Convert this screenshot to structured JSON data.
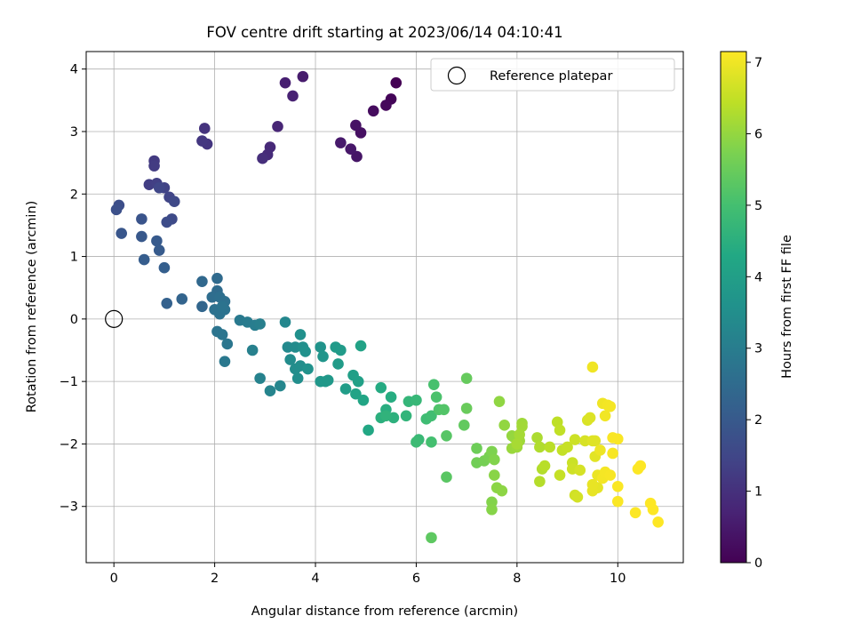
{
  "chart_data": {
    "type": "scatter",
    "title": "FOV centre drift starting at 2023/06/14 04:10:41",
    "xlabel": "Angular distance from reference (arcmin)",
    "ylabel": "Rotation from reference (arcmin)",
    "xlim": [
      -0.55,
      11.3
    ],
    "ylim": [
      -3.9,
      4.28
    ],
    "xticks": [
      0,
      2,
      4,
      6,
      8,
      10
    ],
    "yticks": [
      -3,
      -2,
      -1,
      0,
      1,
      2,
      3,
      4
    ],
    "grid": true,
    "legend": {
      "position": "upper-right",
      "entries": [
        "Reference platepar"
      ]
    },
    "reference_point": {
      "x": 0,
      "y": 0
    },
    "colorbar": {
      "label": "Hours from first FF file",
      "colormap": "viridis",
      "range": [
        0,
        7.15
      ],
      "ticks": [
        0,
        1,
        2,
        3,
        4,
        5,
        6,
        7
      ]
    },
    "points": [
      [
        5.6,
        3.78,
        0.0
      ],
      [
        5.5,
        3.52,
        0.08
      ],
      [
        5.4,
        3.42,
        0.15
      ],
      [
        5.15,
        3.33,
        0.22
      ],
      [
        4.9,
        2.98,
        0.3
      ],
      [
        4.8,
        3.1,
        0.35
      ],
      [
        4.82,
        2.6,
        0.4
      ],
      [
        4.7,
        2.72,
        0.45
      ],
      [
        4.5,
        2.82,
        0.5
      ],
      [
        3.75,
        3.88,
        0.55
      ],
      [
        3.4,
        3.78,
        0.62
      ],
      [
        3.55,
        3.57,
        0.68
      ],
      [
        3.25,
        3.08,
        0.75
      ],
      [
        3.1,
        2.75,
        0.82
      ],
      [
        3.05,
        2.63,
        0.88
      ],
      [
        2.95,
        2.57,
        0.95
      ],
      [
        1.8,
        3.05,
        1.05
      ],
      [
        1.85,
        2.8,
        1.1
      ],
      [
        1.75,
        2.85,
        1.15
      ],
      [
        0.8,
        2.53,
        1.2
      ],
      [
        0.8,
        2.45,
        1.25
      ],
      [
        0.7,
        2.15,
        1.3
      ],
      [
        0.85,
        2.17,
        1.35
      ],
      [
        1.0,
        2.1,
        1.4
      ],
      [
        1.1,
        1.95,
        1.45
      ],
      [
        0.9,
        2.1,
        1.5
      ],
      [
        1.2,
        1.88,
        1.55
      ],
      [
        1.15,
        1.6,
        1.6
      ],
      [
        1.05,
        1.55,
        1.65
      ],
      [
        0.1,
        1.82,
        1.7
      ],
      [
        0.05,
        1.75,
        1.75
      ],
      [
        0.55,
        1.6,
        1.85
      ],
      [
        0.15,
        1.37,
        1.9
      ],
      [
        0.55,
        1.32,
        1.95
      ],
      [
        0.85,
        1.25,
        2.0
      ],
      [
        0.9,
        1.1,
        2.05
      ],
      [
        0.6,
        0.95,
        2.1
      ],
      [
        1.0,
        0.82,
        2.15
      ],
      [
        1.05,
        0.25,
        2.2
      ],
      [
        1.35,
        0.32,
        2.3
      ],
      [
        1.75,
        0.2,
        2.35
      ],
      [
        1.75,
        0.6,
        2.4
      ],
      [
        2.05,
        0.65,
        2.45
      ],
      [
        2.05,
        0.45,
        2.5
      ],
      [
        1.95,
        0.35,
        2.55
      ],
      [
        2.1,
        0.35,
        2.6
      ],
      [
        2.2,
        0.28,
        2.62
      ],
      [
        2.0,
        0.15,
        2.65
      ],
      [
        2.2,
        0.15,
        2.68
      ],
      [
        2.1,
        0.08,
        2.7
      ],
      [
        2.15,
        0.2,
        2.72
      ],
      [
        2.05,
        -0.2,
        2.75
      ],
      [
        2.15,
        -0.25,
        2.78
      ],
      [
        2.25,
        -0.4,
        2.8
      ],
      [
        2.2,
        -0.68,
        2.85
      ],
      [
        2.5,
        -0.02,
        2.9
      ],
      [
        2.65,
        -0.05,
        2.95
      ],
      [
        2.8,
        -0.1,
        3.0
      ],
      [
        2.9,
        -0.08,
        3.05
      ],
      [
        2.75,
        -0.5,
        3.1
      ],
      [
        2.9,
        -0.95,
        3.15
      ],
      [
        3.1,
        -1.15,
        3.2
      ],
      [
        3.3,
        -1.07,
        3.25
      ],
      [
        3.4,
        -0.05,
        3.3
      ],
      [
        3.45,
        -0.45,
        3.35
      ],
      [
        3.6,
        -0.45,
        3.4
      ],
      [
        3.5,
        -0.65,
        3.42
      ],
      [
        3.6,
        -0.8,
        3.45
      ],
      [
        3.7,
        -0.75,
        3.48
      ],
      [
        3.65,
        -0.95,
        3.5
      ],
      [
        3.75,
        -0.45,
        3.52
      ],
      [
        3.7,
        -0.25,
        3.55
      ],
      [
        3.8,
        -0.52,
        3.58
      ],
      [
        3.85,
        -0.8,
        3.6
      ],
      [
        4.1,
        -0.45,
        3.65
      ],
      [
        4.15,
        -0.6,
        3.7
      ],
      [
        4.1,
        -1.0,
        3.75
      ],
      [
        4.2,
        -1.0,
        3.78
      ],
      [
        4.25,
        -0.98,
        3.8
      ],
      [
        4.4,
        -0.45,
        3.85
      ],
      [
        4.5,
        -0.5,
        3.88
      ],
      [
        4.45,
        -0.72,
        3.9
      ],
      [
        4.6,
        -1.12,
        3.95
      ],
      [
        4.75,
        -0.9,
        4.0
      ],
      [
        4.85,
        -1.0,
        4.05
      ],
      [
        4.9,
        -0.43,
        4.1
      ],
      [
        4.8,
        -1.2,
        4.15
      ],
      [
        4.95,
        -1.3,
        4.2
      ],
      [
        5.05,
        -1.78,
        4.25
      ],
      [
        5.3,
        -1.1,
        4.35
      ],
      [
        5.5,
        -1.25,
        4.4
      ],
      [
        5.4,
        -1.45,
        4.45
      ],
      [
        5.3,
        -1.58,
        4.5
      ],
      [
        5.55,
        -1.58,
        4.55
      ],
      [
        5.4,
        -1.55,
        4.6
      ],
      [
        5.8,
        -1.55,
        4.65
      ],
      [
        5.85,
        -1.32,
        4.7
      ],
      [
        6.0,
        -1.3,
        4.75
      ],
      [
        6.05,
        -1.93,
        4.8
      ],
      [
        6.0,
        -1.97,
        4.85
      ],
      [
        6.2,
        -1.6,
        4.9
      ],
      [
        6.3,
        -1.55,
        4.95
      ],
      [
        6.3,
        -1.97,
        5.0
      ],
      [
        6.35,
        -1.05,
        5.05
      ],
      [
        6.4,
        -1.25,
        5.1
      ],
      [
        6.45,
        -1.45,
        5.15
      ],
      [
        6.55,
        -1.45,
        5.2
      ],
      [
        6.6,
        -1.87,
        5.25
      ],
      [
        6.6,
        -2.53,
        5.3
      ],
      [
        6.3,
        -3.5,
        5.35
      ],
      [
        6.95,
        -1.7,
        5.4
      ],
      [
        7.0,
        -0.95,
        5.45
      ],
      [
        7.0,
        -1.43,
        5.5
      ],
      [
        7.2,
        -2.07,
        5.55
      ],
      [
        7.2,
        -2.3,
        5.6
      ],
      [
        7.35,
        -2.27,
        5.65
      ],
      [
        7.45,
        -2.2,
        5.7
      ],
      [
        7.5,
        -2.12,
        5.75
      ],
      [
        7.55,
        -2.25,
        5.8
      ],
      [
        7.5,
        -2.93,
        5.82
      ],
      [
        7.5,
        -3.05,
        5.85
      ],
      [
        7.55,
        -2.5,
        5.88
      ],
      [
        7.6,
        -2.7,
        5.9
      ],
      [
        7.7,
        -2.75,
        5.92
      ],
      [
        7.65,
        -1.32,
        5.95
      ],
      [
        7.75,
        -1.7,
        5.98
      ],
      [
        7.9,
        -1.87,
        6.0
      ],
      [
        7.95,
        -1.9,
        6.02
      ],
      [
        7.9,
        -2.07,
        6.05
      ],
      [
        8.0,
        -2.05,
        6.08
      ],
      [
        8.05,
        -1.95,
        6.1
      ],
      [
        8.1,
        -1.67,
        6.12
      ],
      [
        8.1,
        -1.72,
        6.15
      ],
      [
        8.05,
        -1.85,
        6.18
      ],
      [
        8.0,
        -2.0,
        6.2
      ],
      [
        8.4,
        -1.9,
        6.25
      ],
      [
        8.45,
        -2.05,
        6.3
      ],
      [
        8.5,
        -2.4,
        6.32
      ],
      [
        8.45,
        -2.6,
        6.35
      ],
      [
        8.55,
        -2.35,
        6.38
      ],
      [
        8.65,
        -2.05,
        6.4
      ],
      [
        8.8,
        -1.65,
        6.45
      ],
      [
        8.85,
        -1.78,
        6.48
      ],
      [
        8.9,
        -2.1,
        6.5
      ],
      [
        8.85,
        -2.5,
        6.52
      ],
      [
        9.0,
        -2.05,
        6.55
      ],
      [
        9.1,
        -2.3,
        6.58
      ],
      [
        9.15,
        -1.93,
        6.6
      ],
      [
        9.1,
        -2.4,
        6.62
      ],
      [
        9.15,
        -2.82,
        6.65
      ],
      [
        9.2,
        -2.85,
        6.68
      ],
      [
        9.25,
        -2.42,
        6.7
      ],
      [
        9.35,
        -1.95,
        6.72
      ],
      [
        9.4,
        -1.62,
        6.75
      ],
      [
        9.45,
        -1.58,
        6.78
      ],
      [
        9.5,
        -1.95,
        6.8
      ],
      [
        9.55,
        -1.95,
        6.82
      ],
      [
        9.55,
        -2.2,
        6.85
      ],
      [
        9.6,
        -2.7,
        6.88
      ],
      [
        9.5,
        -2.75,
        6.9
      ],
      [
        9.5,
        -2.65,
        6.92
      ],
      [
        9.6,
        -2.5,
        6.95
      ],
      [
        9.65,
        -2.1,
        6.97
      ],
      [
        9.5,
        -0.77,
        7.0
      ],
      [
        9.7,
        -1.35,
        7.0
      ],
      [
        9.75,
        -1.55,
        7.02
      ],
      [
        9.8,
        -1.38,
        7.04
      ],
      [
        9.85,
        -1.4,
        7.05
      ],
      [
        9.7,
        -2.55,
        7.05
      ],
      [
        9.75,
        -2.45,
        7.06
      ],
      [
        9.85,
        -2.5,
        7.08
      ],
      [
        9.9,
        -2.15,
        7.08
      ],
      [
        9.9,
        -1.9,
        7.1
      ],
      [
        10.0,
        -1.92,
        7.1
      ],
      [
        10.0,
        -2.68,
        7.12
      ],
      [
        10.0,
        -2.92,
        7.12
      ],
      [
        10.35,
        -3.1,
        7.14
      ],
      [
        10.4,
        -2.4,
        7.14
      ],
      [
        10.45,
        -2.35,
        7.15
      ],
      [
        10.65,
        -2.95,
        7.15
      ],
      [
        10.7,
        -3.05,
        7.15
      ],
      [
        10.8,
        -3.25,
        7.15
      ]
    ]
  }
}
